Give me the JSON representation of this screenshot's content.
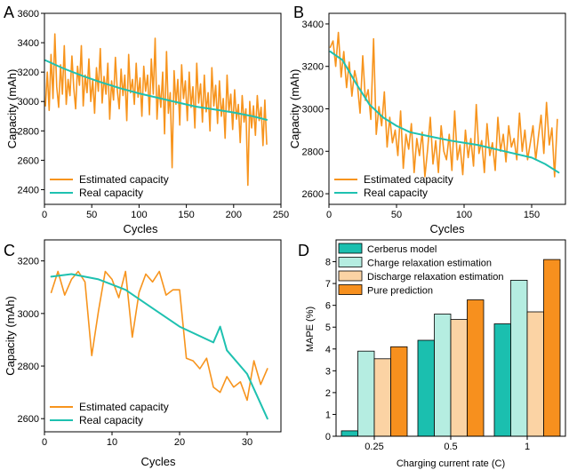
{
  "colors": {
    "estimated": "#F7941D",
    "real": "#1EC1B0",
    "cerberus": "#1BBFAF",
    "charge": "#B5EDE1",
    "discharge": "#FBD3A4",
    "pure": "#F7901E",
    "axis": "#000000"
  },
  "chart_data": [
    {
      "panel": "A",
      "type": "line",
      "xlabel": "Cycles",
      "ylabel": "Capacity (mAh)",
      "xlim": [
        0,
        250
      ],
      "ylim": [
        2300,
        3600
      ],
      "xticks": [
        0,
        50,
        100,
        150,
        200,
        250
      ],
      "yticks": [
        2400,
        2600,
        2800,
        3000,
        3200,
        3400,
        3600
      ],
      "legend_position": "bottom-left",
      "series": [
        {
          "name": "Estimated capacity",
          "color_key": "estimated",
          "x": [
            1,
            3,
            5,
            7,
            9,
            11,
            13,
            15,
            17,
            19,
            21,
            23,
            25,
            27,
            29,
            31,
            33,
            35,
            37,
            39,
            41,
            43,
            45,
            47,
            49,
            51,
            53,
            55,
            57,
            59,
            61,
            63,
            65,
            67,
            69,
            71,
            73,
            75,
            77,
            79,
            81,
            83,
            85,
            87,
            89,
            91,
            93,
            95,
            97,
            99,
            101,
            103,
            105,
            107,
            109,
            111,
            113,
            115,
            117,
            119,
            121,
            123,
            125,
            127,
            129,
            131,
            133,
            135,
            137,
            139,
            141,
            143,
            145,
            147,
            149,
            151,
            153,
            155,
            157,
            159,
            161,
            163,
            165,
            167,
            169,
            171,
            173,
            175,
            177,
            179,
            181,
            183,
            185,
            187,
            189,
            191,
            193,
            195,
            197,
            199,
            201,
            203,
            205,
            207,
            209,
            211,
            213,
            215,
            217,
            219,
            221,
            223,
            225,
            227,
            229,
            231,
            233,
            235
          ],
          "y": [
            2970,
            3200,
            2940,
            3320,
            3020,
            3460,
            3100,
            2960,
            3250,
            3050,
            3380,
            2980,
            3150,
            3040,
            3310,
            3090,
            2950,
            3240,
            3110,
            3380,
            2970,
            3180,
            3060,
            3290,
            3000,
            3150,
            2920,
            3230,
            3070,
            3360,
            2990,
            3170,
            3050,
            3260,
            2880,
            3140,
            3010,
            3300,
            3080,
            2950,
            3220,
            3040,
            3180,
            2870,
            3320,
            3060,
            3150,
            2980,
            3260,
            3030,
            3160,
            2900,
            3240,
            3070,
            3180,
            2910,
            3290,
            3050,
            3430,
            2880,
            3110,
            2960,
            3200,
            2780,
            3340,
            2920,
            3060,
            2550,
            3210,
            2980,
            3150,
            2840,
            3250,
            3020,
            3140,
            2870,
            3200,
            2960,
            3100,
            2820,
            3260,
            2990,
            3120,
            2860,
            3180,
            2930,
            3060,
            2800,
            3230,
            2970,
            3110,
            2850,
            3140,
            2900,
            3020,
            2750,
            3180,
            2930,
            3050,
            2810,
            3080,
            2880,
            2980,
            2720,
            3040,
            2860,
            2950,
            2430,
            3000,
            2820,
            2970,
            2770,
            3040,
            2870,
            2960,
            2700,
            3010,
            2710
          ]
        },
        {
          "name": "Real capacity",
          "color_key": "real",
          "x": [
            1,
            20,
            40,
            60,
            80,
            100,
            120,
            140,
            160,
            180,
            200,
            220,
            235
          ],
          "y": [
            3280,
            3225,
            3175,
            3130,
            3090,
            3055,
            3025,
            2995,
            2965,
            2945,
            2925,
            2900,
            2875
          ]
        }
      ]
    },
    {
      "panel": "B",
      "type": "line",
      "xlabel": "Cycles",
      "ylabel": "Capacity (mAh)",
      "xlim": [
        0,
        175
      ],
      "ylim": [
        2550,
        3450
      ],
      "xticks": [
        0,
        50,
        100,
        150
      ],
      "yticks": [
        2600,
        2800,
        3000,
        3200,
        3400
      ],
      "legend_position": "bottom-left",
      "series": [
        {
          "name": "Estimated capacity",
          "color_key": "estimated",
          "x": [
            1,
            3,
            5,
            7,
            9,
            11,
            13,
            15,
            17,
            19,
            21,
            23,
            25,
            27,
            29,
            31,
            33,
            35,
            37,
            39,
            41,
            43,
            45,
            47,
            49,
            51,
            53,
            55,
            57,
            59,
            61,
            63,
            65,
            67,
            69,
            71,
            73,
            75,
            77,
            79,
            81,
            83,
            85,
            87,
            89,
            91,
            93,
            95,
            97,
            99,
            101,
            103,
            105,
            107,
            109,
            111,
            113,
            115,
            117,
            119,
            121,
            123,
            125,
            127,
            129,
            131,
            133,
            135,
            137,
            139,
            141,
            143,
            145,
            147,
            149,
            151,
            153,
            155,
            157,
            159,
            161,
            163,
            165,
            167,
            169
          ],
          "y": [
            3290,
            3320,
            3200,
            3360,
            3150,
            3270,
            3100,
            3220,
            3060,
            3180,
            3120,
            2980,
            3250,
            3040,
            3090,
            2950,
            3330,
            2880,
            3010,
            2920,
            3080,
            2820,
            2960,
            2840,
            2900,
            2780,
            2990,
            2720,
            2880,
            2810,
            2930,
            2700,
            2860,
            2780,
            2890,
            2680,
            2810,
            2960,
            2740,
            2850,
            2700,
            2920,
            2800,
            2760,
            2880,
            2710,
            2990,
            2760,
            2830,
            2690,
            2900,
            2770,
            2860,
            2730,
            3020,
            2790,
            2850,
            2700,
            2930,
            2780,
            2840,
            2710,
            2960,
            2800,
            2880,
            2750,
            2920,
            2820,
            2860,
            2760,
            2980,
            2800,
            2900,
            2760,
            2840,
            2920,
            2760,
            2870,
            2970,
            2790,
            3030,
            2830,
            2910,
            2680,
            2950
          ]
        },
        {
          "name": "Real capacity",
          "color_key": "real",
          "x": [
            1,
            10,
            20,
            30,
            40,
            50,
            60,
            75,
            90,
            110,
            130,
            150,
            160,
            170
          ],
          "y": [
            3270,
            3230,
            3120,
            3020,
            2960,
            2920,
            2890,
            2870,
            2850,
            2830,
            2800,
            2770,
            2740,
            2700
          ]
        }
      ]
    },
    {
      "panel": "C",
      "type": "line",
      "xlabel": "Cycles",
      "ylabel": "Capacity (mAh)",
      "xlim": [
        0,
        35
      ],
      "ylim": [
        2550,
        3280
      ],
      "xticks": [
        0,
        10,
        20,
        30
      ],
      "yticks": [
        2600,
        2800,
        3000,
        3200
      ],
      "legend_position": "bottom-left",
      "series": [
        {
          "name": "Estimated capacity",
          "color_key": "estimated",
          "x": [
            1,
            2,
            3,
            4,
            5,
            6,
            7,
            8,
            9,
            10,
            11,
            12,
            13,
            14,
            15,
            16,
            17,
            18,
            19,
            20,
            21,
            22,
            23,
            24,
            25,
            26,
            27,
            28,
            29,
            30,
            31,
            32,
            33
          ],
          "y": [
            3080,
            3160,
            3070,
            3130,
            3160,
            3120,
            2840,
            3010,
            3160,
            3130,
            3060,
            3160,
            2910,
            3080,
            3150,
            3120,
            3160,
            3070,
            3090,
            3090,
            2830,
            2820,
            2790,
            2830,
            2720,
            2700,
            2760,
            2720,
            2740,
            2670,
            2820,
            2730,
            2790
          ]
        },
        {
          "name": "Real capacity",
          "color_key": "real",
          "x": [
            1,
            4,
            8,
            12,
            16,
            20,
            25,
            26,
            27,
            30,
            33
          ],
          "y": [
            3140,
            3150,
            3130,
            3090,
            3020,
            2950,
            2890,
            2950,
            2860,
            2770,
            2600
          ]
        }
      ]
    },
    {
      "panel": "D",
      "type": "bar",
      "xlabel": "Charging current rate (C)",
      "ylabel": "MAPE (%)",
      "ylim": [
        0,
        9
      ],
      "yticks": [
        0,
        1,
        2,
        3,
        4,
        5,
        6,
        7,
        8
      ],
      "categories": [
        "0.25",
        "0.5",
        "1"
      ],
      "legend_position": "top-left",
      "series": [
        {
          "name": "Cerberus model",
          "color_key": "cerberus",
          "values": [
            0.25,
            4.4,
            5.15
          ]
        },
        {
          "name": "Charge relaxation estimation",
          "color_key": "charge",
          "values": [
            3.9,
            5.6,
            7.15
          ]
        },
        {
          "name": "Discharge relaxation estimation",
          "color_key": "discharge",
          "values": [
            3.55,
            5.35,
            5.7
          ]
        },
        {
          "name": "Pure prediction",
          "color_key": "pure",
          "values": [
            4.1,
            6.25,
            8.1
          ]
        }
      ]
    }
  ]
}
